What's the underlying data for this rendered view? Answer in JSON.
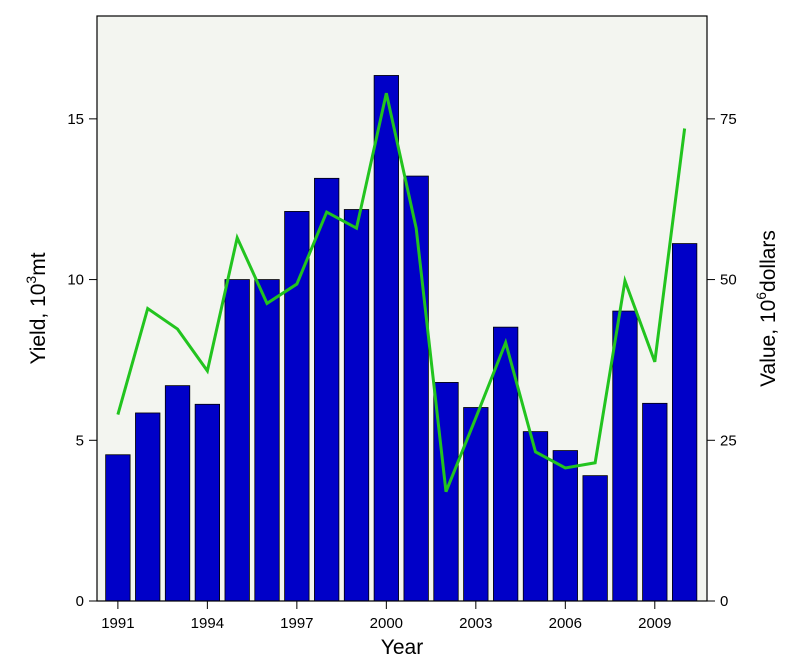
{
  "chart_data": {
    "type": "bar",
    "x": [
      1991,
      1992,
      1993,
      1994,
      1995,
      1996,
      1997,
      1998,
      1999,
      2000,
      2001,
      2002,
      2003,
      2004,
      2005,
      2006,
      2007,
      2008,
      2009,
      2010
    ],
    "series": [
      {
        "type": "bar",
        "axis": "left",
        "values": [
          4.55,
          5.85,
          6.7,
          6.12,
          10.0,
          10.0,
          12.12,
          13.15,
          12.18,
          16.35,
          13.22,
          6.8,
          6.02,
          8.52,
          5.27,
          4.68,
          3.9,
          9.02,
          6.15,
          11.12
        ]
      },
      {
        "type": "line",
        "axis": "right",
        "values": [
          29.0,
          45.5,
          42.3,
          35.8,
          56.5,
          46.3,
          49.3,
          60.5,
          58.0,
          79.0,
          58.0,
          17.0,
          28.5,
          40.2,
          23.2,
          20.7,
          21.5,
          49.8,
          37.2,
          73.5
        ]
      }
    ],
    "xlabel": "Year",
    "ylabel_left": "Yield, 10",
    "ylabel_left_sup": "3",
    "ylabel_left_suffix": "mt",
    "ylabel_right": "Value, 10",
    "ylabel_right_sup": "6",
    "ylabel_right_suffix": "dollars",
    "x_ticks": [
      1991,
      1994,
      1997,
      2000,
      2003,
      2006,
      2009
    ],
    "xlim": [
      1990.3,
      2010.75
    ],
    "ylim_left": [
      0,
      18.2
    ],
    "ylim_right": [
      0,
      91
    ],
    "y_ticks_left": [
      0,
      5,
      10,
      15
    ],
    "y_ticks_right": [
      0,
      25,
      50,
      75
    ],
    "grid": false,
    "legend": "none",
    "colors": {
      "bar_fill": "#0000c8",
      "bar_stroke": "#000000",
      "line": "#22c41f",
      "plot_background": "#f3f5f0"
    }
  }
}
